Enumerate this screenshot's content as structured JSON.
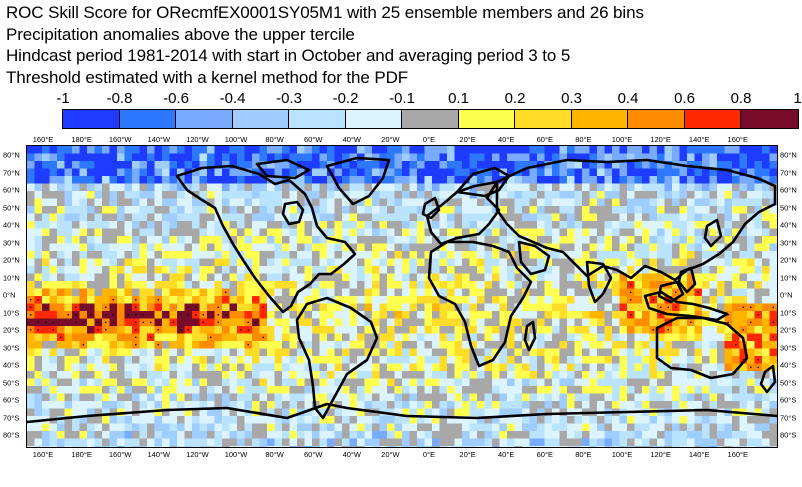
{
  "titles": {
    "line1": "ROC Skill Score for ORecmfEX0001SY05M1 with 25 ensemble members and 26 bins",
    "line2": "Precipitation anomalies above the upper tercile",
    "line3": "Hindcast period 1981-2014 with start in October and averaging period  3 to  5",
    "line4": "Threshold estimated with a kernel method for the PDF"
  },
  "colorbar": {
    "labels": [
      "-1",
      "-0.8",
      "-0.6",
      "-0.4",
      "-0.3",
      "-0.2",
      "-0.1",
      "0.1",
      "0.2",
      "0.3",
      "0.4",
      "0.6",
      "0.8",
      "1"
    ],
    "colors": [
      "#1e3cff",
      "#2e78ff",
      "#78aaff",
      "#a0cdff",
      "#b9e3ff",
      "#dcf4ff",
      "#a8a8a8",
      "#ffff50",
      "#ffdc28",
      "#ffb400",
      "#ff8c00",
      "#ff2800",
      "#780a2a"
    ]
  },
  "map": {
    "lon_labels": [
      "160°E",
      "180°E",
      "160°W",
      "140°W",
      "120°W",
      "100°W",
      "80°W",
      "60°W",
      "40°W",
      "20°W",
      "0°E",
      "20°E",
      "40°E",
      "60°E",
      "80°E",
      "100°E",
      "120°E",
      "140°E",
      "160°E"
    ],
    "lat_labels": [
      "80°N",
      "70°N",
      "60°N",
      "50°N",
      "40°N",
      "30°N",
      "20°N",
      "10°N",
      "0°N",
      "10°S",
      "20°S",
      "30°S",
      "40°S",
      "50°S",
      "60°S",
      "70°S",
      "80°S"
    ],
    "coastline_color": "#000000",
    "land_fill": "none"
  }
}
